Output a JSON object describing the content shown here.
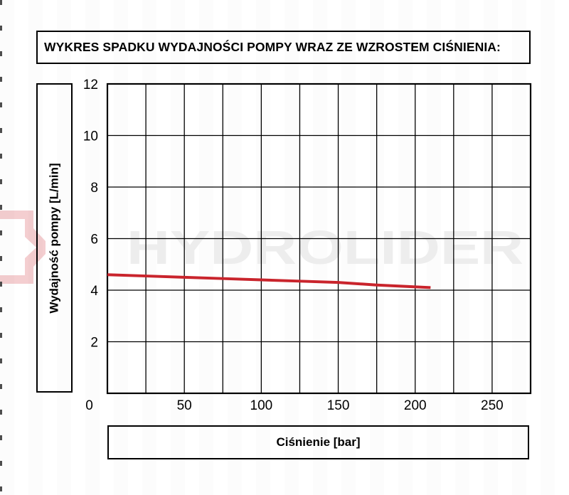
{
  "header": {
    "title": "WYKRES SPADKU WYDAJNOŚCI POMPY WRAZ ZE WZROSTEM CIŚNIENIA:"
  },
  "watermark": {
    "brand_text": "HYDROLIDER",
    "logo": "hydrolider-logo-mark",
    "text_color": "#ededed",
    "logo_color": "rgba(204,33,39,0.22)"
  },
  "chart_data": {
    "type": "line",
    "title": "",
    "xlabel": "Ciśnienie [bar]",
    "ylabel": "Wydajność pompy [L/min]",
    "xlim": [
      0,
      275
    ],
    "ylim": [
      0,
      12
    ],
    "x_grid_step": 25,
    "y_grid_step": 2,
    "x_tick_labels": [
      0,
      50,
      100,
      150,
      200,
      250
    ],
    "y_tick_labels": [
      0,
      2,
      4,
      6,
      8,
      10,
      12
    ],
    "grid": true,
    "legend": "none",
    "grid_color": "#000000",
    "series": [
      {
        "name": "Wydajność pompy",
        "color": "#c9242c",
        "points": [
          [
            0,
            4.6
          ],
          [
            25,
            4.55
          ],
          [
            50,
            4.5
          ],
          [
            75,
            4.45
          ],
          [
            100,
            4.4
          ],
          [
            125,
            4.35
          ],
          [
            150,
            4.3
          ],
          [
            175,
            4.2
          ],
          [
            210,
            4.1
          ]
        ]
      }
    ]
  }
}
